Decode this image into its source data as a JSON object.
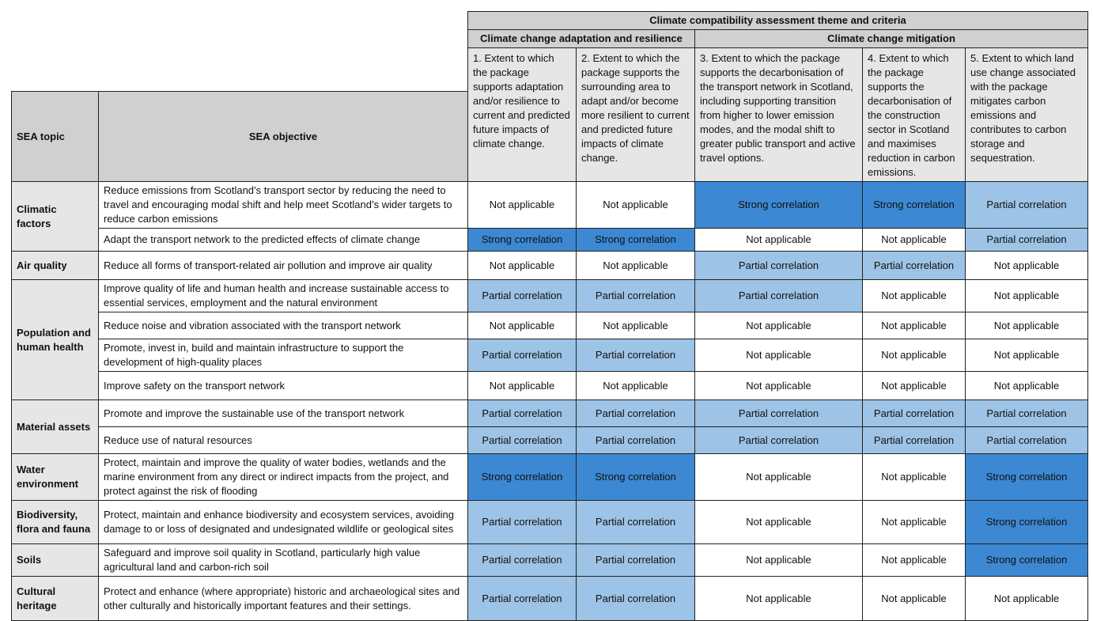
{
  "header": {
    "theme_title": "Climate compatibility assessment theme and criteria",
    "groups": [
      "Climate change adaptation and resilience",
      "Climate change mitigation"
    ],
    "sea_topic": "SEA topic",
    "sea_objective": "SEA objective",
    "criteria": [
      "1. Extent to which the package supports adaptation and/or resilience to current and predicted future impacts of climate change.",
      "2. Extent to which the package supports the surrounding area to adapt and/or become more resilient to current and predicted future impacts of climate change.",
      "3. Extent to which the package supports the decarbonisation of the transport network in Scotland, including supporting transition from higher to lower emission modes, and the modal shift to greater public transport and active travel options.",
      "4. Extent to which the package supports the decarbonisation of the construction sector in Scotland and maximises reduction in carbon emissions.",
      "5. Extent to which land use change associated with the package mitigates carbon emissions and contributes to carbon storage and sequestration."
    ]
  },
  "colors": {
    "strong": "#3d88d3",
    "partial": "#9dc3e6",
    "not_applicable": "#ffffff",
    "header": "#d0d0d0",
    "criteria": "#e6e6e6"
  },
  "topics": [
    {
      "name": "Climatic factors",
      "rows": [
        {
          "objective": "Reduce emissions from Scotland’s transport sector by reducing the need to travel and encouraging modal shift and help meet Scotland’s wider targets to reduce carbon emissions",
          "values": [
            "Not applicable",
            "Not applicable",
            "Strong correlation",
            "Strong correlation",
            "Partial correlation"
          ]
        },
        {
          "objective": "Adapt the transport network to the predicted effects of climate change",
          "values": [
            "Strong correlation",
            "Strong correlation",
            "Not applicable",
            "Not applicable",
            "Partial correlation"
          ]
        }
      ]
    },
    {
      "name": "Air quality",
      "rows": [
        {
          "objective": "Reduce all forms of transport-related air pollution and improve air quality",
          "values": [
            "Not applicable",
            "Not applicable",
            "Partial correlation",
            "Partial correlation",
            "Not applicable"
          ]
        }
      ]
    },
    {
      "name": "Population and human health",
      "rows": [
        {
          "objective": "Improve quality of life and human health and increase sustainable access to essential services, employment and the natural environment",
          "values": [
            "Partial correlation",
            "Partial correlation",
            "Partial correlation",
            "Not applicable",
            "Not applicable"
          ]
        },
        {
          "objective": "Reduce noise and vibration associated with the transport network",
          "values": [
            "Not applicable",
            "Not applicable",
            "Not applicable",
            "Not applicable",
            "Not applicable"
          ]
        },
        {
          "objective": "Promote, invest in, build and maintain infrastructure to support the development of high-quality places",
          "values": [
            "Partial correlation",
            "Partial correlation",
            "Not applicable",
            "Not applicable",
            "Not applicable"
          ]
        },
        {
          "objective": "Improve safety on the transport network",
          "values": [
            "Not applicable",
            "Not applicable",
            "Not applicable",
            "Not applicable",
            "Not applicable"
          ]
        }
      ]
    },
    {
      "name": "Material assets",
      "rows": [
        {
          "objective": "Promote and improve the sustainable use of the transport network",
          "values": [
            "Partial correlation",
            "Partial correlation",
            "Partial correlation",
            "Partial correlation",
            "Partial correlation"
          ]
        },
        {
          "objective": "Reduce use of natural resources",
          "values": [
            "Partial correlation",
            "Partial correlation",
            "Partial correlation",
            "Partial correlation",
            "Partial correlation"
          ]
        }
      ]
    },
    {
      "name": "Water environment",
      "rows": [
        {
          "objective": "Protect, maintain and improve the quality of water bodies, wetlands and the marine environment from any direct or indirect impacts from the project, and protect against the risk of flooding",
          "values": [
            "Strong correlation",
            "Strong correlation",
            "Not applicable",
            "Not applicable",
            "Strong correlation"
          ]
        }
      ]
    },
    {
      "name": "Biodiversity, flora and fauna",
      "rows": [
        {
          "objective": "Protect, maintain and enhance biodiversity and ecosystem services, avoiding damage to or loss of designated and undesignated wildlife or geological sites",
          "values": [
            "Partial correlation",
            "Partial correlation",
            "Not applicable",
            "Not applicable",
            "Strong correlation"
          ]
        }
      ]
    },
    {
      "name": "Soils",
      "rows": [
        {
          "objective": "Safeguard and improve soil quality in Scotland, particularly high value agricultural land and carbon-rich soil",
          "values": [
            "Partial correlation",
            "Partial correlation",
            "Not applicable",
            "Not applicable",
            "Strong correlation"
          ]
        }
      ]
    },
    {
      "name": "Cultural heritage",
      "rows": [
        {
          "objective": "Protect and enhance (where appropriate) historic and archaeological sites and other culturally and historically important features and their settings.",
          "values": [
            "Partial correlation",
            "Partial correlation",
            "Not applicable",
            "Not applicable",
            "Not applicable"
          ]
        }
      ]
    }
  ]
}
